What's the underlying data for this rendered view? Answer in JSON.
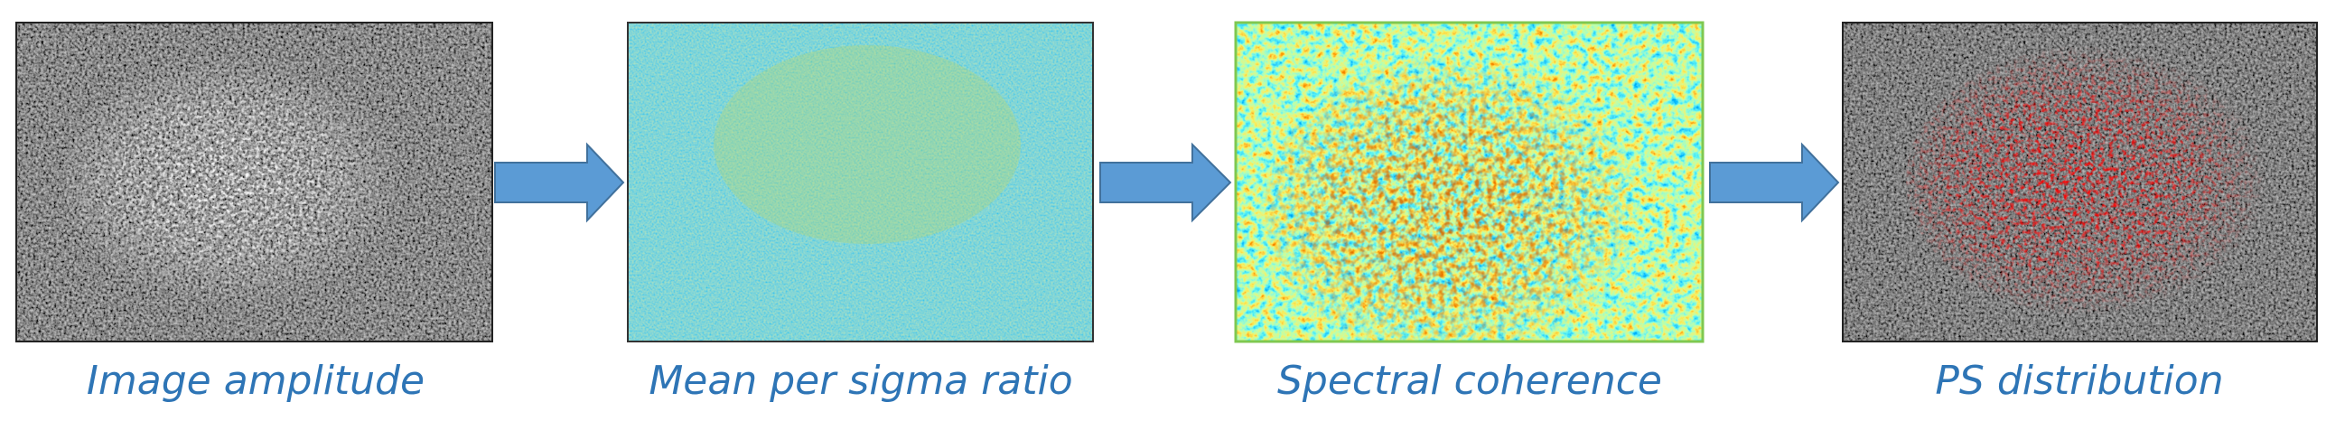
{
  "panels": [
    {
      "caption": "Image amplitude"
    },
    {
      "caption": "Mean per sigma ratio"
    },
    {
      "caption": "Spectral coherence"
    },
    {
      "caption": "PS distribution"
    }
  ]
}
